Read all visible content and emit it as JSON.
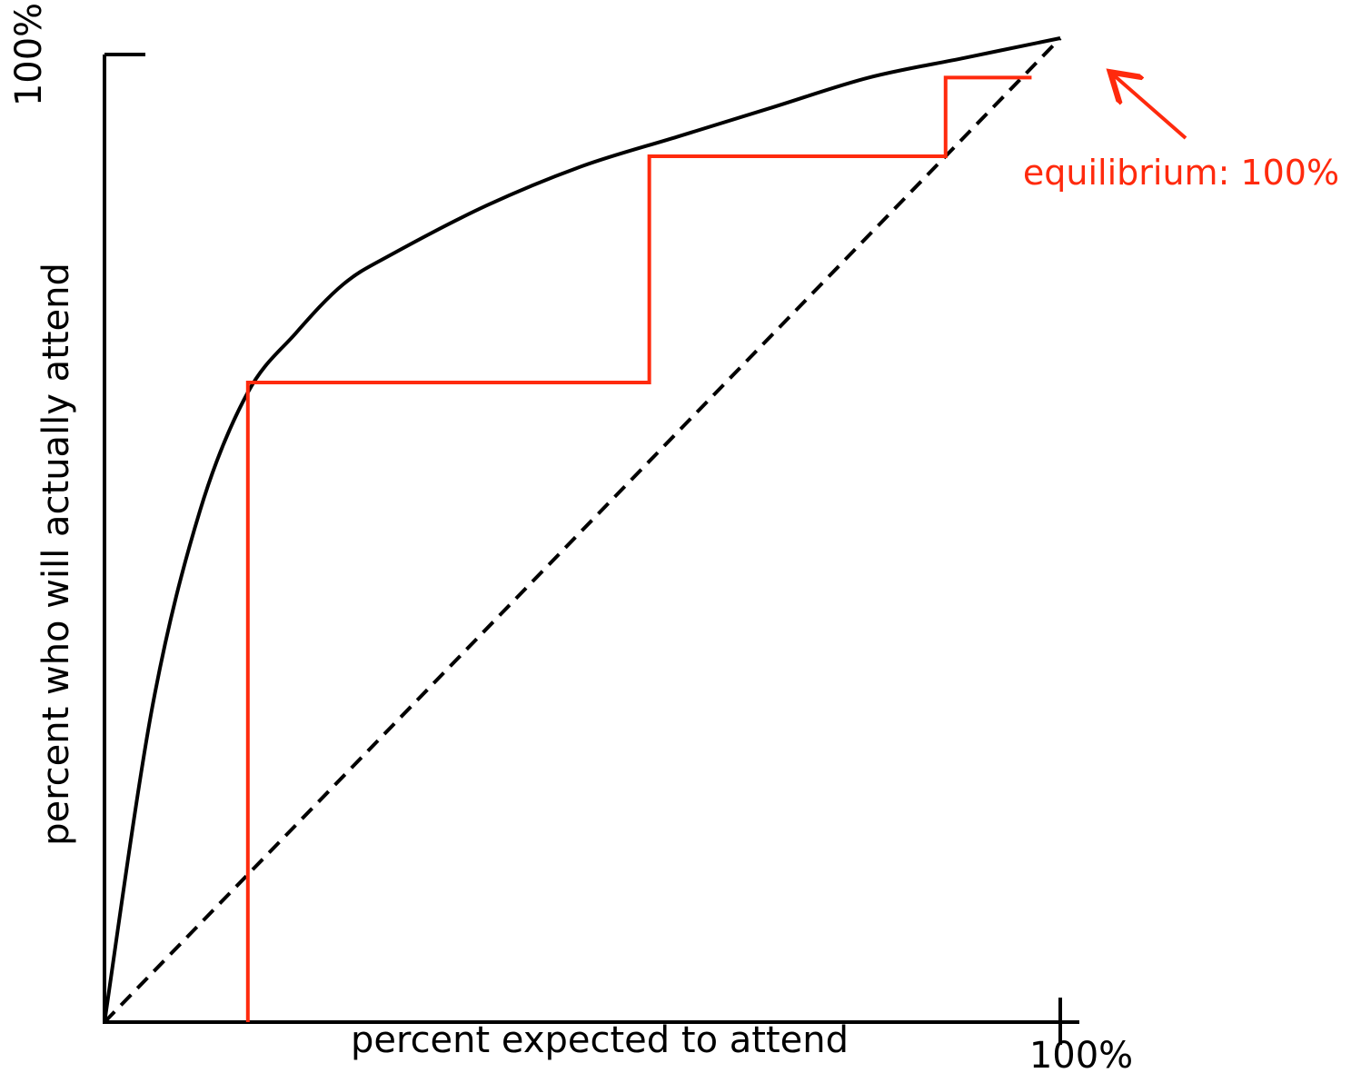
{
  "chart_data": {
    "type": "line",
    "title": "",
    "xlabel": "percent expected to attend",
    "ylabel": "percent who will actually attend",
    "x_tick_label": "100%",
    "y_tick_label": "100%",
    "xlim": [
      0,
      100
    ],
    "ylim": [
      0,
      100
    ],
    "grid": false,
    "series": [
      {
        "name": "",
        "style": "solid",
        "color": "#000000",
        "x": [
          0,
          5,
          10,
          15,
          20,
          25,
          30,
          40,
          50,
          60,
          70,
          80,
          90,
          100
        ],
        "y": [
          0,
          32,
          52,
          64,
          70,
          75,
          78,
          83,
          87,
          90,
          93,
          96,
          98,
          100
        ]
      },
      {
        "name": "",
        "style": "dashed",
        "color": "#000000",
        "x": [
          0,
          100
        ],
        "y": [
          0,
          100
        ]
      },
      {
        "name": "",
        "style": "steps",
        "color": "#ff2a0d",
        "x": [
          15,
          15,
          57,
          57,
          88,
          88,
          97
        ],
        "y": [
          0,
          65,
          65,
          88,
          88,
          96,
          96
        ]
      }
    ],
    "annotations": [
      {
        "text": "equilibrium: 100%",
        "color": "#ff2a0d",
        "arrow_to": [
          100,
          100
        ]
      }
    ]
  }
}
